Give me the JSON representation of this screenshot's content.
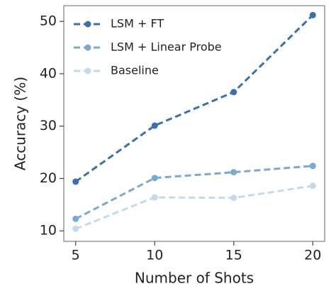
{
  "chart_data": {
    "type": "line",
    "xlabel": "Number of Shots",
    "ylabel": "Accuracy (%)",
    "x": [
      5,
      10,
      15,
      20
    ],
    "series": [
      {
        "name": "LSM + FT",
        "color": "#3a6fb0",
        "values": [
          19.4,
          30.1,
          36.5,
          51.2
        ]
      },
      {
        "name": "LSM + Linear Probe",
        "color": "#7aaad3",
        "values": [
          12.3,
          20.1,
          21.2,
          22.4
        ]
      },
      {
        "name": "Baseline",
        "color": "#c5d9ee",
        "values": [
          10.4,
          16.4,
          16.3,
          18.6
        ]
      }
    ],
    "xlim": [
      4.25,
      20.75
    ],
    "xticks": [
      5,
      10,
      15,
      20
    ],
    "ylim": [
      8,
      53
    ],
    "yticks": [
      10,
      20,
      30,
      40,
      50
    ],
    "legend": "upper left",
    "grid": false
  }
}
